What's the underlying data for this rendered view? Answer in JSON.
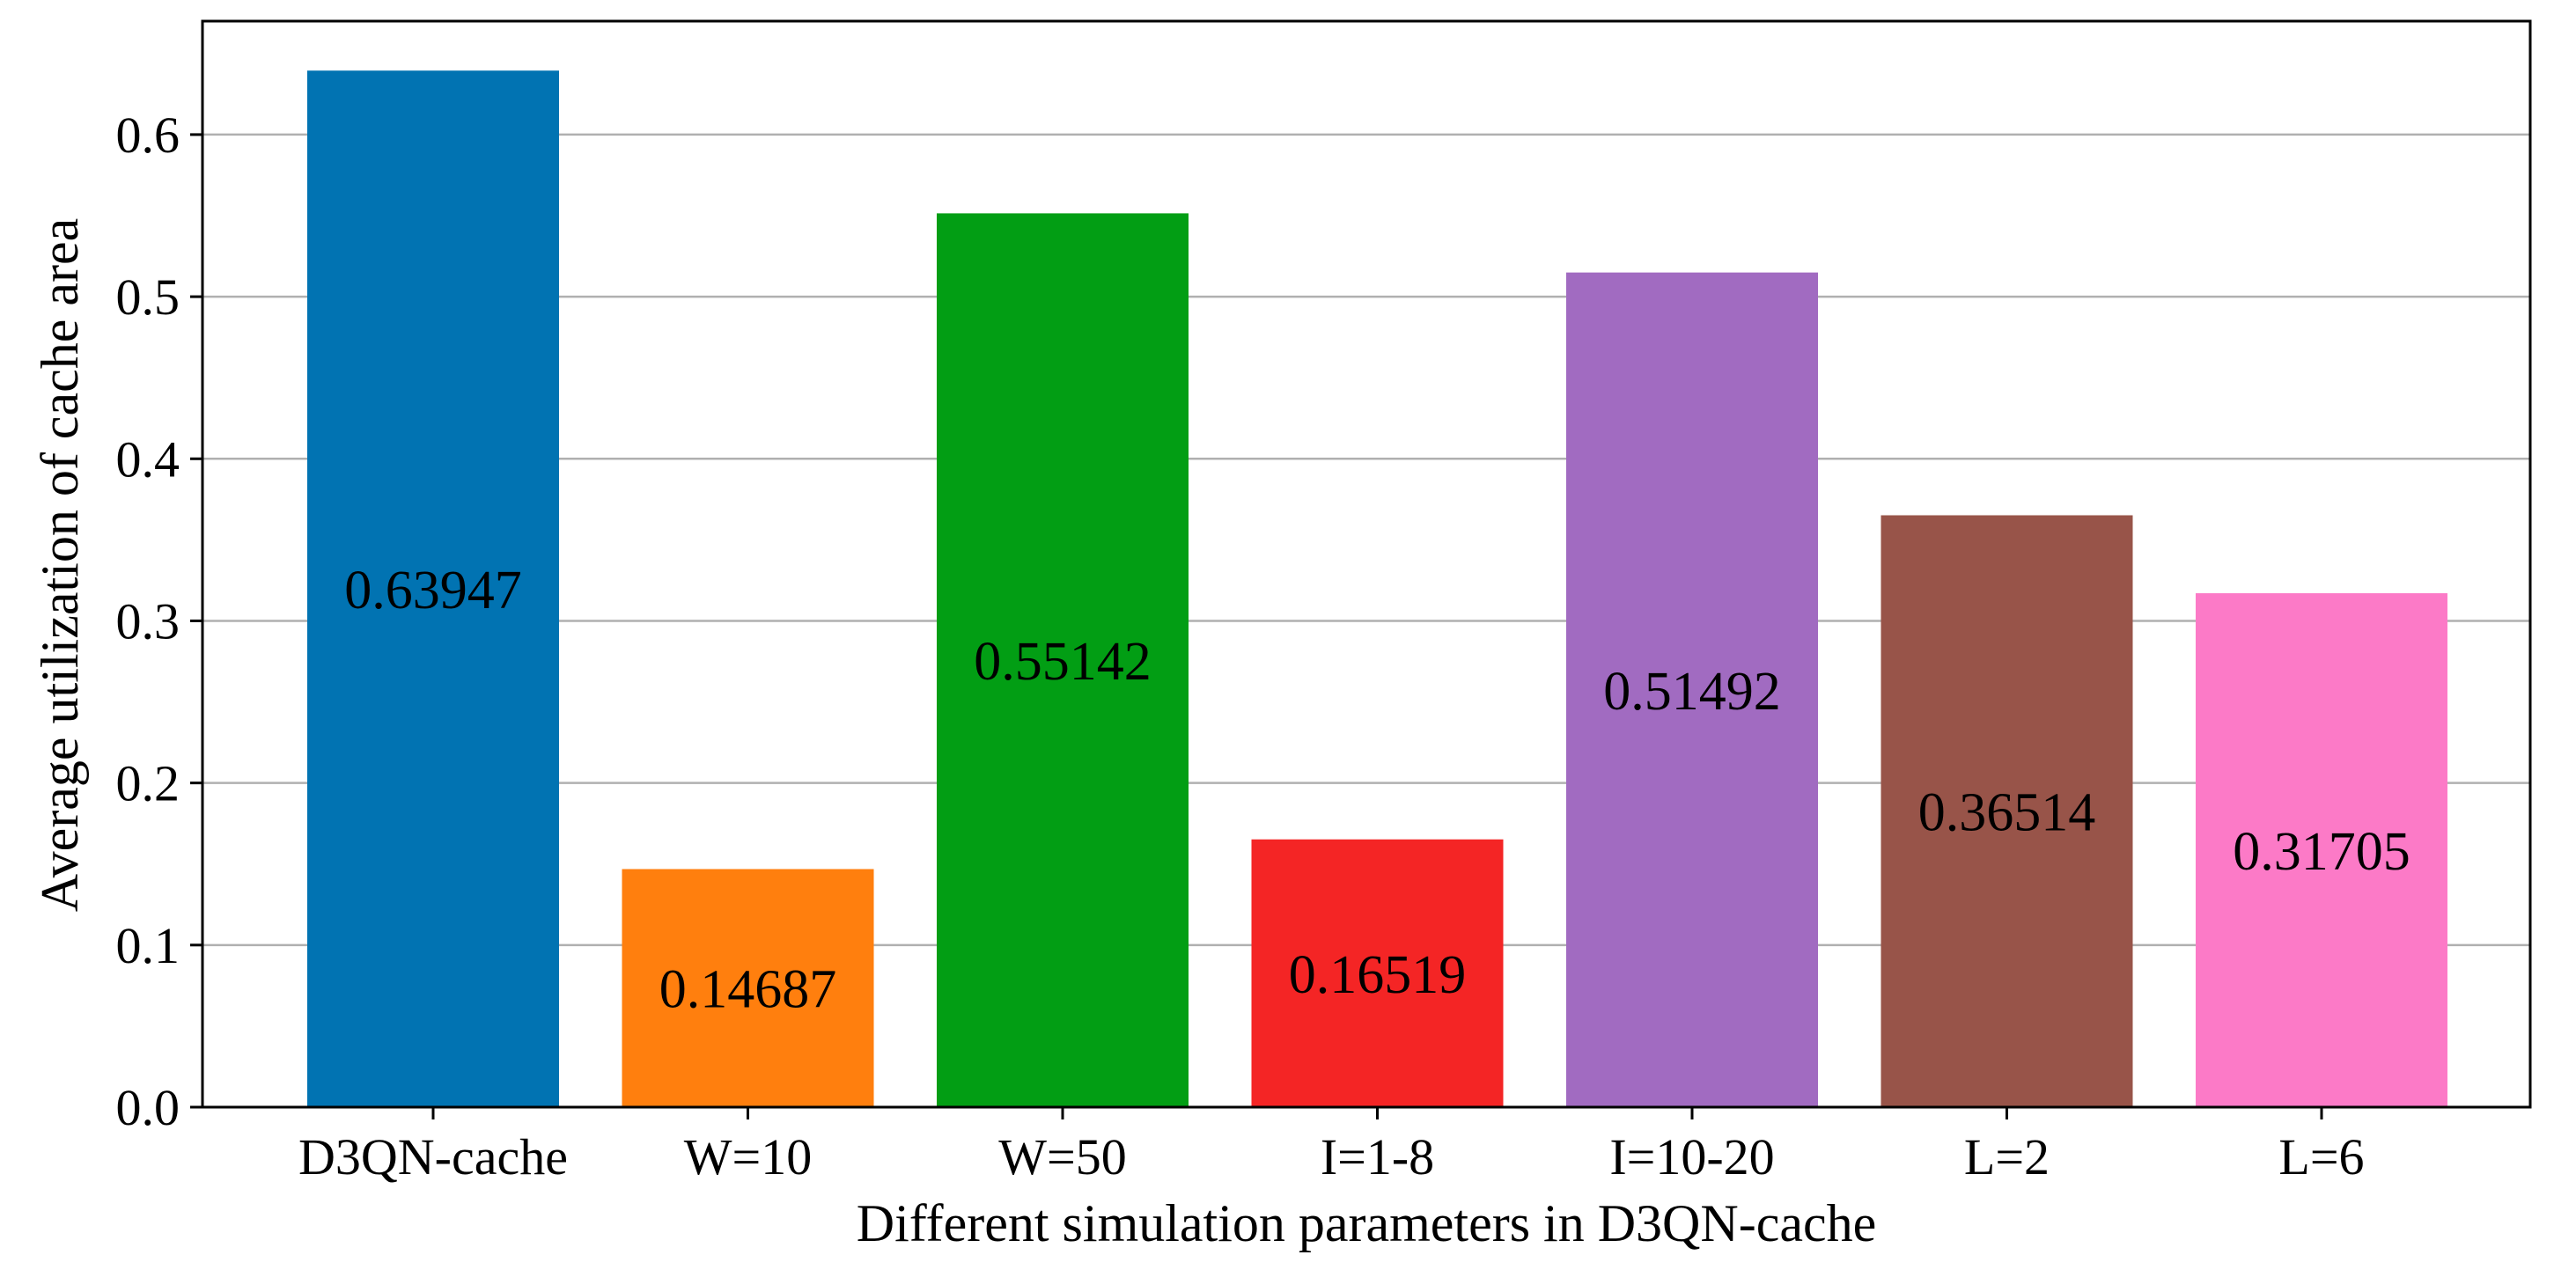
{
  "chart_data": {
    "type": "bar",
    "title": "",
    "xlabel": "Different simulation parameters in D3QN-cache",
    "ylabel": "Average utilization of cache area",
    "ylim": [
      0,
      0.67
    ],
    "yticks": [
      0.0,
      0.1,
      0.2,
      0.3,
      0.4,
      0.5,
      0.6
    ],
    "ytick_labels": [
      "0.0",
      "0.1",
      "0.2",
      "0.3",
      "0.4",
      "0.5",
      "0.6"
    ],
    "grid": "horizontal",
    "categories": [
      "D3QN-cache",
      "W=10",
      "W=50",
      "I=1-8",
      "I=10-20",
      "L=2",
      "L=6"
    ],
    "values": [
      0.63947,
      0.14687,
      0.55142,
      0.16519,
      0.51492,
      0.36514,
      0.31705
    ],
    "value_labels": [
      "0.63947",
      "0.14687",
      "0.55142",
      "0.16519",
      "0.51492",
      "0.36514",
      "0.31705"
    ],
    "colors": [
      "#0173b2",
      "#ff7f0e",
      "#029e14",
      "#f42525",
      "#a16bc1",
      "#985449",
      "#fc7ac7"
    ]
  }
}
